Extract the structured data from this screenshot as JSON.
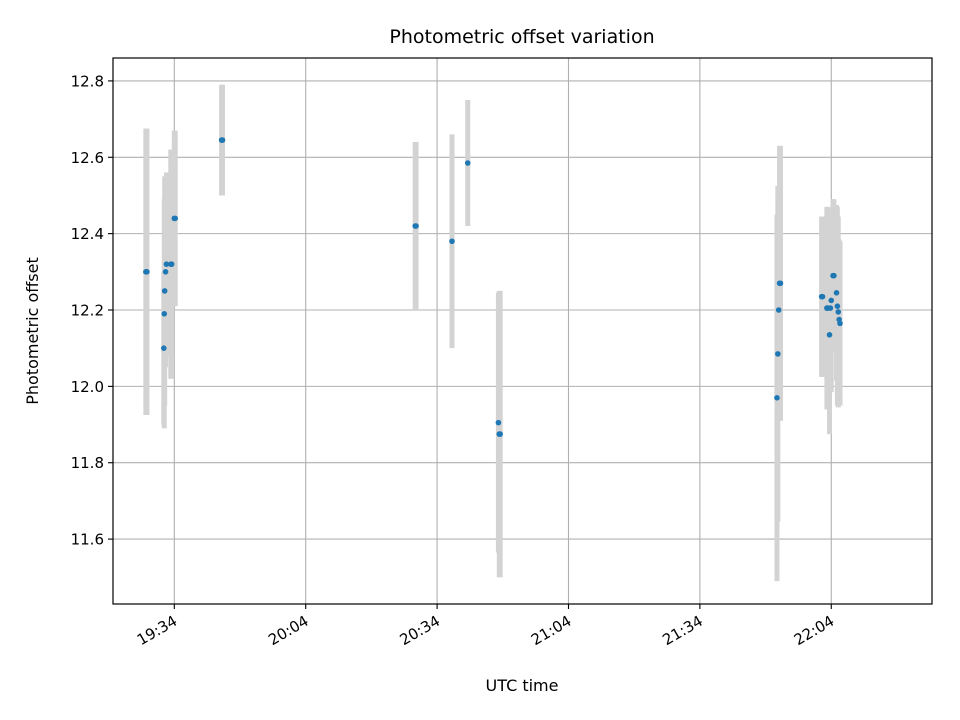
{
  "chart_data": {
    "type": "scatter",
    "title": "Photometric offset variation",
    "xlabel": "UTC time",
    "ylabel": "Photometric offset",
    "x_unit": "UTC",
    "xlim": [
      "19:20",
      "22:27"
    ],
    "ylim": [
      11.43,
      12.86
    ],
    "x_ticks": [
      "19:34",
      "20:04",
      "20:34",
      "21:04",
      "21:34",
      "22:04"
    ],
    "y_ticks": [
      11.6,
      11.8,
      12.0,
      12.2,
      12.4,
      12.6,
      12.8
    ],
    "grid": true,
    "errorbar_color": "#d3d3d3",
    "point_color": "#1f77b4",
    "points": [
      {
        "x": "19:27:30",
        "y": 12.3,
        "yerr": 0.375
      },
      {
        "x": "19:27:45",
        "y": 12.3,
        "yerr": 0.375
      },
      {
        "x": "19:31:36",
        "y": 12.1,
        "yerr": 0.2
      },
      {
        "x": "19:31:42",
        "y": 12.19,
        "yerr": 0.3
      },
      {
        "x": "19:31:48",
        "y": 12.25,
        "yerr": 0.3
      },
      {
        "x": "19:32:00",
        "y": 12.3,
        "yerr": 0.25
      },
      {
        "x": "19:32:12",
        "y": 12.32,
        "yerr": 0.24
      },
      {
        "x": "19:33:12",
        "y": 12.32,
        "yerr": 0.3
      },
      {
        "x": "19:33:24",
        "y": 12.32,
        "yerr": 0.3
      },
      {
        "x": "19:34:00",
        "y": 12.44,
        "yerr": 0.23
      },
      {
        "x": "19:34:12",
        "y": 12.44,
        "yerr": 0.23
      },
      {
        "x": "19:44:48",
        "y": 12.645,
        "yerr": 0.145
      },
      {
        "x": "19:45:00",
        "y": 12.645,
        "yerr": 0.145
      },
      {
        "x": "20:29:00",
        "y": 12.42,
        "yerr": 0.22
      },
      {
        "x": "20:29:12",
        "y": 12.42,
        "yerr": 0.22
      },
      {
        "x": "20:37:24",
        "y": 12.38,
        "yerr": 0.28
      },
      {
        "x": "20:41:00",
        "y": 12.585,
        "yerr": 0.165
      },
      {
        "x": "20:48:00",
        "y": 11.905,
        "yerr": 0.34
      },
      {
        "x": "20:48:12",
        "y": 11.875,
        "yerr": 0.375
      },
      {
        "x": "20:48:24",
        "y": 11.875,
        "yerr": 0.375
      },
      {
        "x": "21:51:36",
        "y": 11.97,
        "yerr": 0.48
      },
      {
        "x": "21:51:48",
        "y": 12.085,
        "yerr": 0.44
      },
      {
        "x": "21:52:00",
        "y": 12.2,
        "yerr": 0.29
      },
      {
        "x": "21:52:12",
        "y": 12.27,
        "yerr": 0.36
      },
      {
        "x": "21:52:24",
        "y": 12.27,
        "yerr": 0.36
      },
      {
        "x": "22:01:48",
        "y": 12.235,
        "yerr": 0.21
      },
      {
        "x": "22:02:00",
        "y": 12.235,
        "yerr": 0.21
      },
      {
        "x": "22:03:00",
        "y": 12.205,
        "yerr": 0.265
      },
      {
        "x": "22:03:12",
        "y": 12.205,
        "yerr": 0.265
      },
      {
        "x": "22:03:36",
        "y": 12.135,
        "yerr": 0.26
      },
      {
        "x": "22:03:48",
        "y": 12.205,
        "yerr": 0.22
      },
      {
        "x": "22:04:00",
        "y": 12.225,
        "yerr": 0.24
      },
      {
        "x": "22:04:24",
        "y": 12.29,
        "yerr": 0.2
      },
      {
        "x": "22:04:36",
        "y": 12.29,
        "yerr": 0.2
      },
      {
        "x": "22:05:12",
        "y": 12.245,
        "yerr": 0.23
      },
      {
        "x": "22:05:24",
        "y": 12.21,
        "yerr": 0.26
      },
      {
        "x": "22:05:36",
        "y": 12.195,
        "yerr": 0.25
      },
      {
        "x": "22:05:48",
        "y": 12.175,
        "yerr": 0.21
      },
      {
        "x": "22:06:00",
        "y": 12.165,
        "yerr": 0.215
      }
    ]
  }
}
